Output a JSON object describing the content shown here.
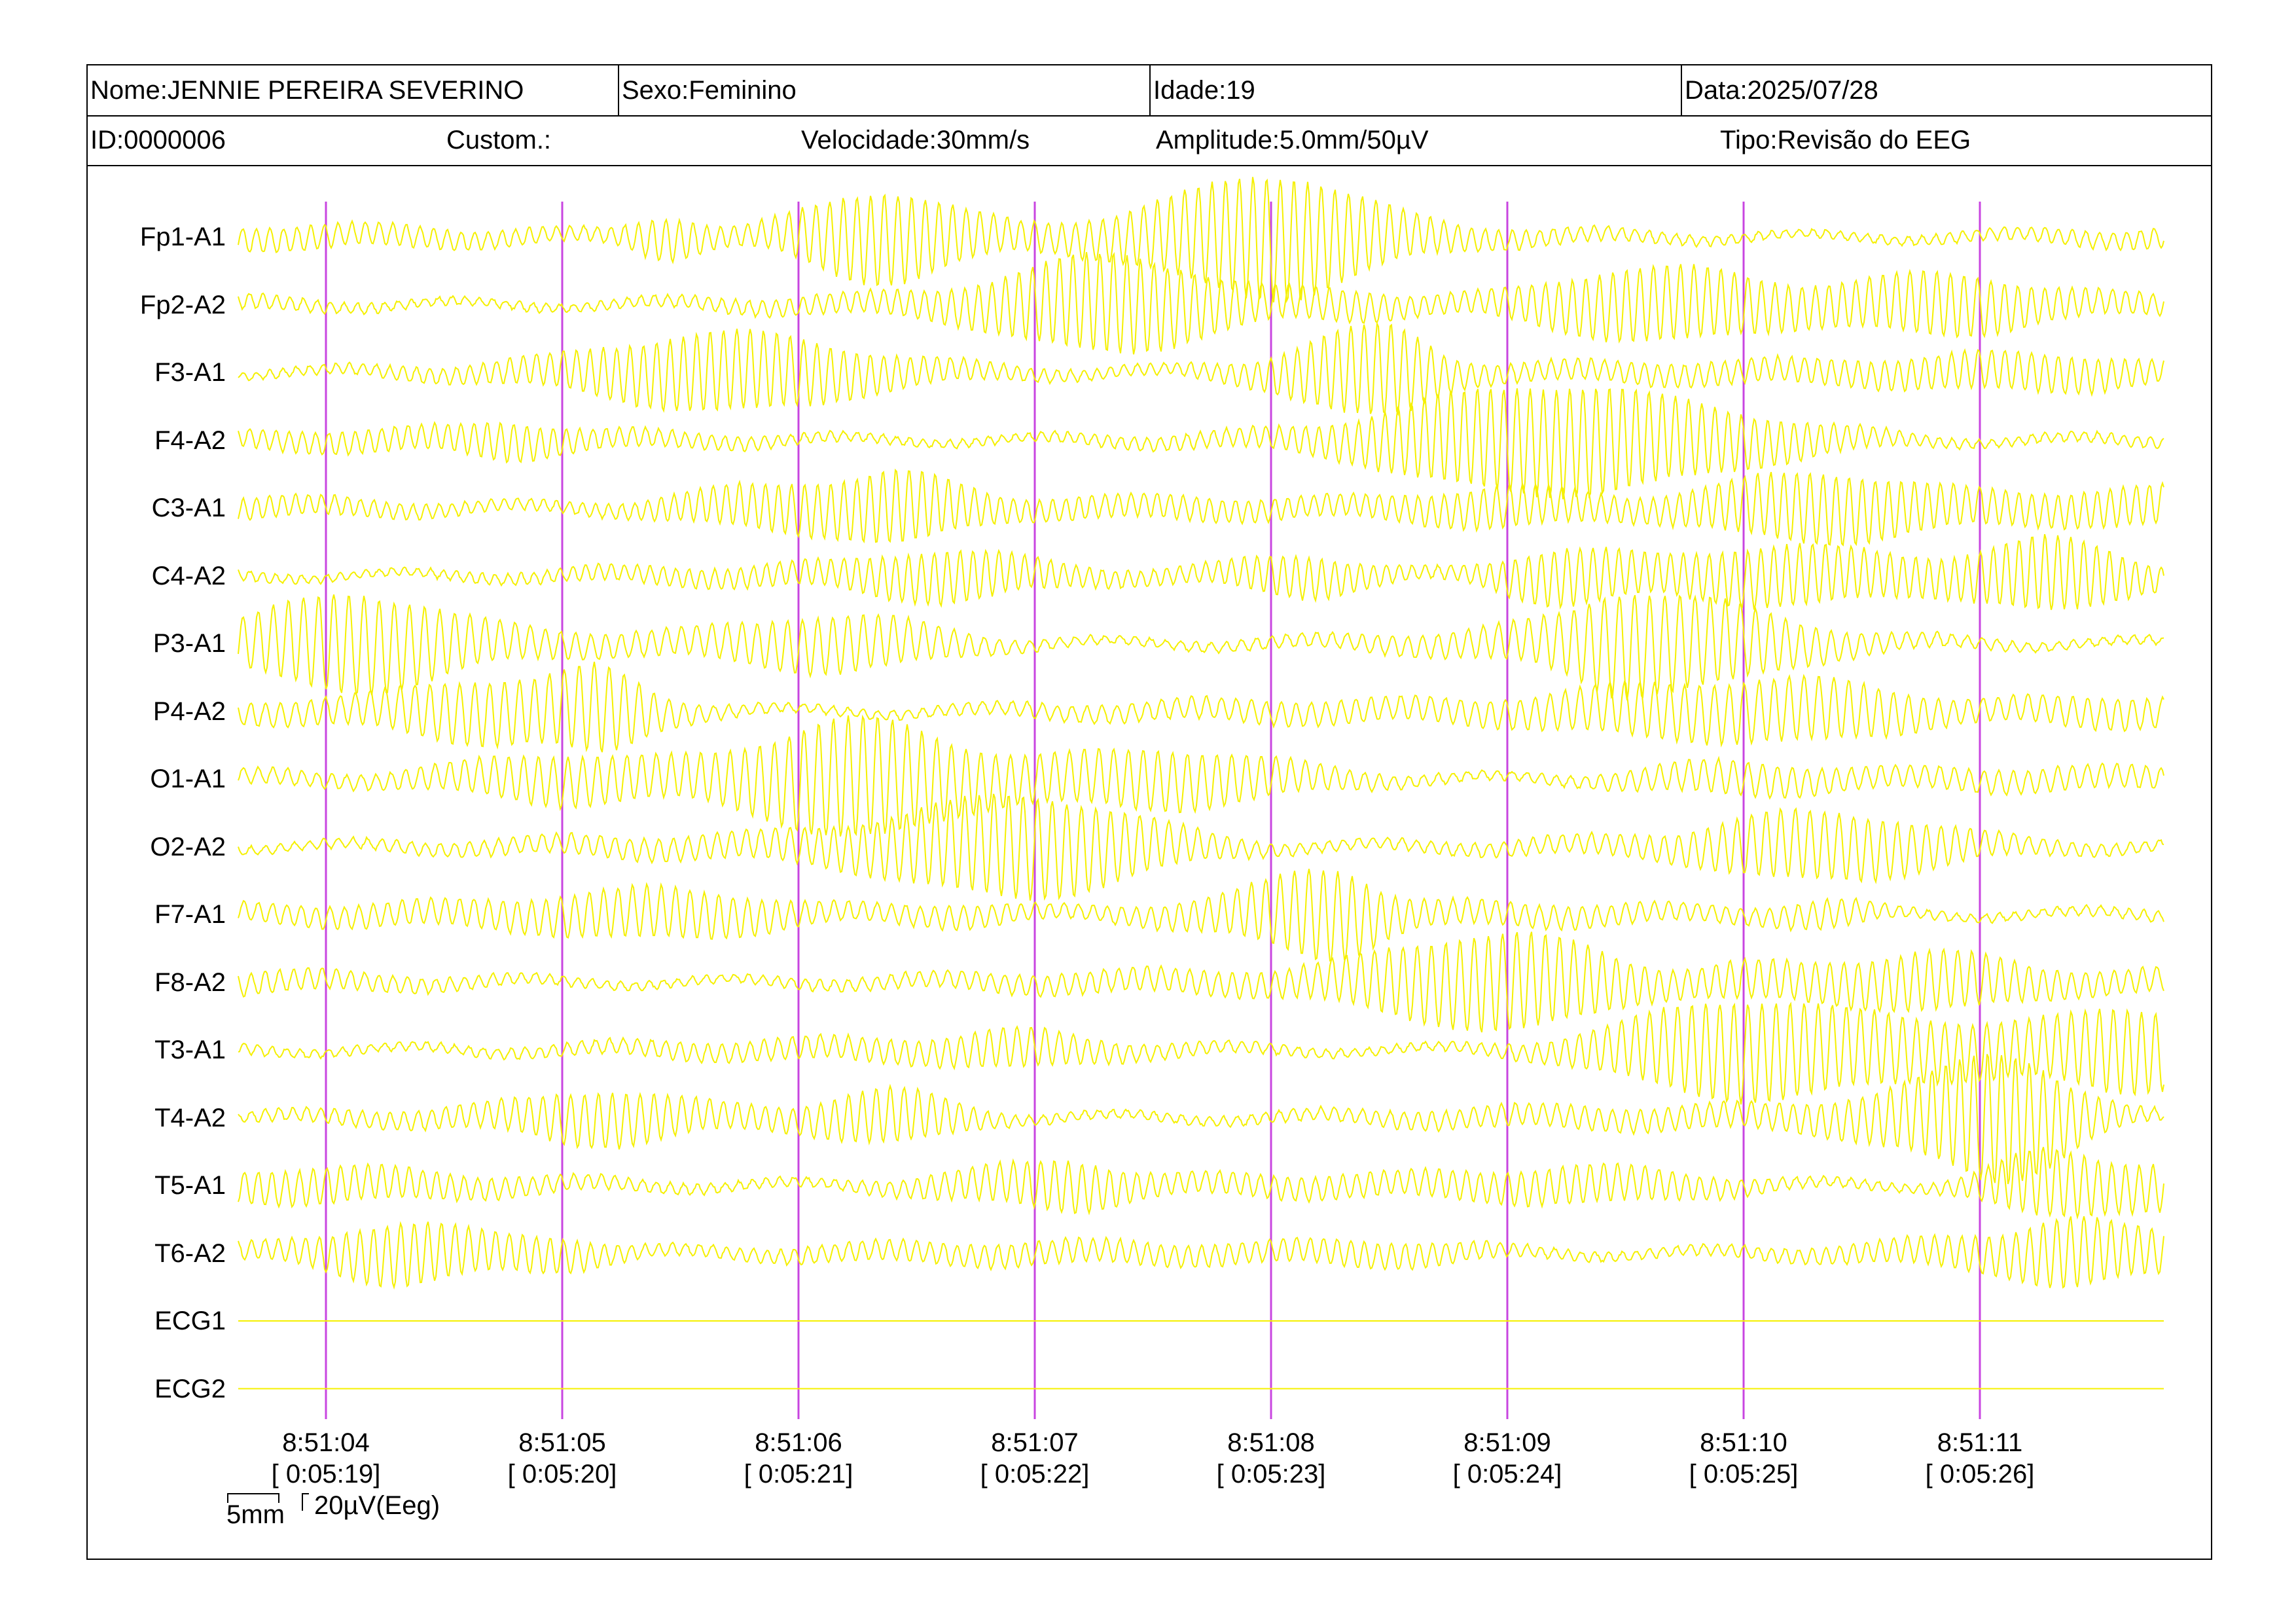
{
  "header": {
    "name": "Nome:JENNIE PEREIRA SEVERINO",
    "sex": "Sexo:Feminino",
    "age": "Idade:19",
    "date": "Data:2025/07/28",
    "id": "ID:0000006",
    "custom": "Custom.:",
    "speed": "Velocidade:30mm/s",
    "amplitude": "Amplitude:5.0mm/50µV",
    "type": "Tipo:Revisão do EEG"
  },
  "channels": [
    {
      "label": "Fp1-A1",
      "kind": "eeg"
    },
    {
      "label": "Fp2-A2",
      "kind": "eeg"
    },
    {
      "label": "F3-A1",
      "kind": "eeg"
    },
    {
      "label": "F4-A2",
      "kind": "eeg"
    },
    {
      "label": "C3-A1",
      "kind": "eeg"
    },
    {
      "label": "C4-A2",
      "kind": "eeg"
    },
    {
      "label": "P3-A1",
      "kind": "eeg"
    },
    {
      "label": "P4-A2",
      "kind": "eeg"
    },
    {
      "label": "O1-A1",
      "kind": "eeg"
    },
    {
      "label": "O2-A2",
      "kind": "eeg"
    },
    {
      "label": "F7-A1",
      "kind": "eeg"
    },
    {
      "label": "F8-A2",
      "kind": "eeg"
    },
    {
      "label": "T3-A1",
      "kind": "eeg"
    },
    {
      "label": "T4-A2",
      "kind": "eeg"
    },
    {
      "label": "T5-A1",
      "kind": "eeg"
    },
    {
      "label": "T6-A2",
      "kind": "eeg"
    },
    {
      "label": "ECG1",
      "kind": "flat"
    },
    {
      "label": "ECG2",
      "kind": "flat"
    }
  ],
  "time_marks": [
    {
      "clock": "8:51:04",
      "elapsed": "[ 0:05:19]"
    },
    {
      "clock": "8:51:05",
      "elapsed": "[ 0:05:20]"
    },
    {
      "clock": "8:51:06",
      "elapsed": "[ 0:05:21]"
    },
    {
      "clock": "8:51:07",
      "elapsed": "[ 0:05:22]"
    },
    {
      "clock": "8:51:08",
      "elapsed": "[ 0:05:23]"
    },
    {
      "clock": "8:51:09",
      "elapsed": "[ 0:05:24]"
    },
    {
      "clock": "8:51:10",
      "elapsed": "[ 0:05:25]"
    },
    {
      "clock": "8:51:11",
      "elapsed": "[ 0:05:26]"
    }
  ],
  "scale": {
    "time": "5mm",
    "amplitude": "20µV(Eeg)"
  },
  "colors": {
    "trace": "#f5f000",
    "marker": "#c845e0",
    "grid": "#000000"
  }
}
